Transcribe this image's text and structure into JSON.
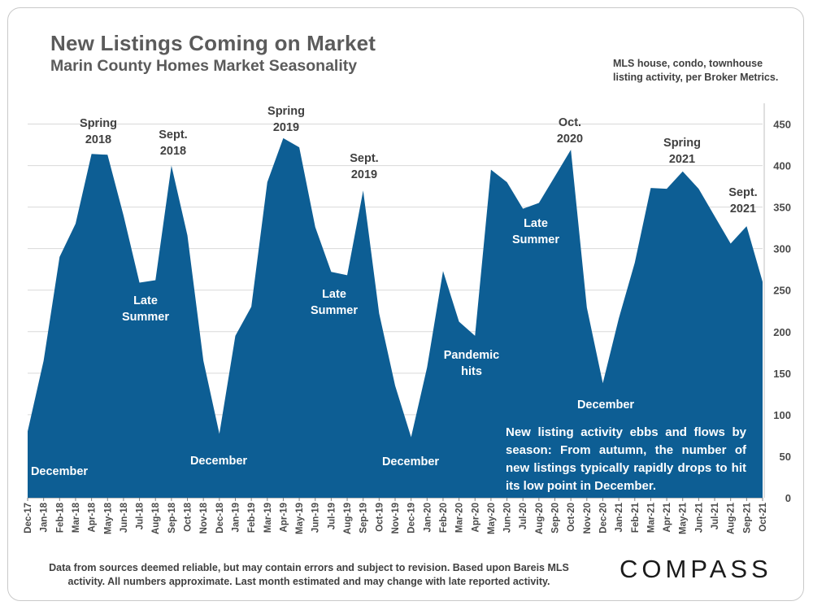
{
  "header": {
    "title": "New Listings Coming on Market",
    "subtitle": "Marin County Homes Market Seasonality",
    "source_note_line1": "MLS house, condo, townhouse",
    "source_note_line2": "listing activity, per Broker Metrics."
  },
  "footer": {
    "note_line1": "Data from sources deemed reliable, but may contain errors and subject to revision. Based upon Bareis MLS",
    "note_line2": "activity. All numbers approximate. Last month estimated and may change with late reported activity.",
    "logo": "COMPASS"
  },
  "callout": {
    "text": "New listing activity ebbs and flows by season: From autumn, the number of new listings typically rapidly drops to hit its low point in December."
  },
  "colors": {
    "area": "#0d5e94",
    "grid": "#d9d9d9",
    "label_dark": "#404040",
    "label_light": "#ffffff"
  },
  "chart_data": {
    "type": "area",
    "x": [
      "Dec-17",
      "Jan-18",
      "Feb-18",
      "Mar-18",
      "Apr-18",
      "May-18",
      "Jun-18",
      "Jul-18",
      "Aug-18",
      "Sep-18",
      "Oct-18",
      "Nov-18",
      "Dec-18",
      "Jan-19",
      "Feb-19",
      "Mar-19",
      "Apr-19",
      "May-19",
      "Jun-19",
      "Jul-19",
      "Aug-19",
      "Sep-19",
      "Oct-19",
      "Nov-19",
      "Dec-19",
      "Jan-20",
      "Feb-20",
      "Mar-20",
      "Apr-20",
      "May-20",
      "Jun-20",
      "Jul-20",
      "Aug-20",
      "Sep-20",
      "Oct-20",
      "Nov-20",
      "Dec-20",
      "Jan-21",
      "Feb-21",
      "Mar-21",
      "Apr-21",
      "May-21",
      "Jun-21",
      "Jul-21",
      "Aug-21",
      "Sep-21",
      "Oct-21"
    ],
    "values": [
      80,
      165,
      290,
      330,
      414,
      413,
      340,
      259,
      262,
      400,
      316,
      165,
      77,
      195,
      230,
      380,
      433,
      422,
      326,
      272,
      268,
      370,
      222,
      135,
      73,
      157,
      273,
      212,
      195,
      395,
      380,
      348,
      355,
      387,
      419,
      229,
      138,
      216,
      283,
      373,
      372,
      393,
      372,
      339,
      306,
      327,
      260
    ],
    "ylim": [
      0,
      475
    ],
    "yticks": [
      0,
      50,
      100,
      150,
      200,
      250,
      300,
      350,
      400,
      450
    ],
    "grid": true,
    "y_axis_side": "right",
    "annotations": [
      {
        "lines": [
          "Spring",
          "2018"
        ],
        "tone": "dark"
      },
      {
        "lines": [
          "Sept.",
          "2018"
        ],
        "tone": "dark"
      },
      {
        "lines": [
          "Late",
          "Summer"
        ],
        "tone": "light"
      },
      {
        "lines": [
          "December"
        ],
        "tone": "light"
      },
      {
        "lines": [
          "December"
        ],
        "tone": "light"
      },
      {
        "lines": [
          "Spring",
          "2019"
        ],
        "tone": "dark"
      },
      {
        "lines": [
          "Sept.",
          "2019"
        ],
        "tone": "dark"
      },
      {
        "lines": [
          "Late",
          "Summer"
        ],
        "tone": "light"
      },
      {
        "lines": [
          "December"
        ],
        "tone": "light"
      },
      {
        "lines": [
          "Pandemic",
          "hits"
        ],
        "tone": "light"
      },
      {
        "lines": [
          "Oct.",
          "2020"
        ],
        "tone": "dark"
      },
      {
        "lines": [
          "Late",
          "Summer"
        ],
        "tone": "light"
      },
      {
        "lines": [
          "December"
        ],
        "tone": "light"
      },
      {
        "lines": [
          "Spring",
          "2021"
        ],
        "tone": "dark"
      },
      {
        "lines": [
          "Sept.",
          "2021"
        ],
        "tone": "dark"
      }
    ]
  }
}
